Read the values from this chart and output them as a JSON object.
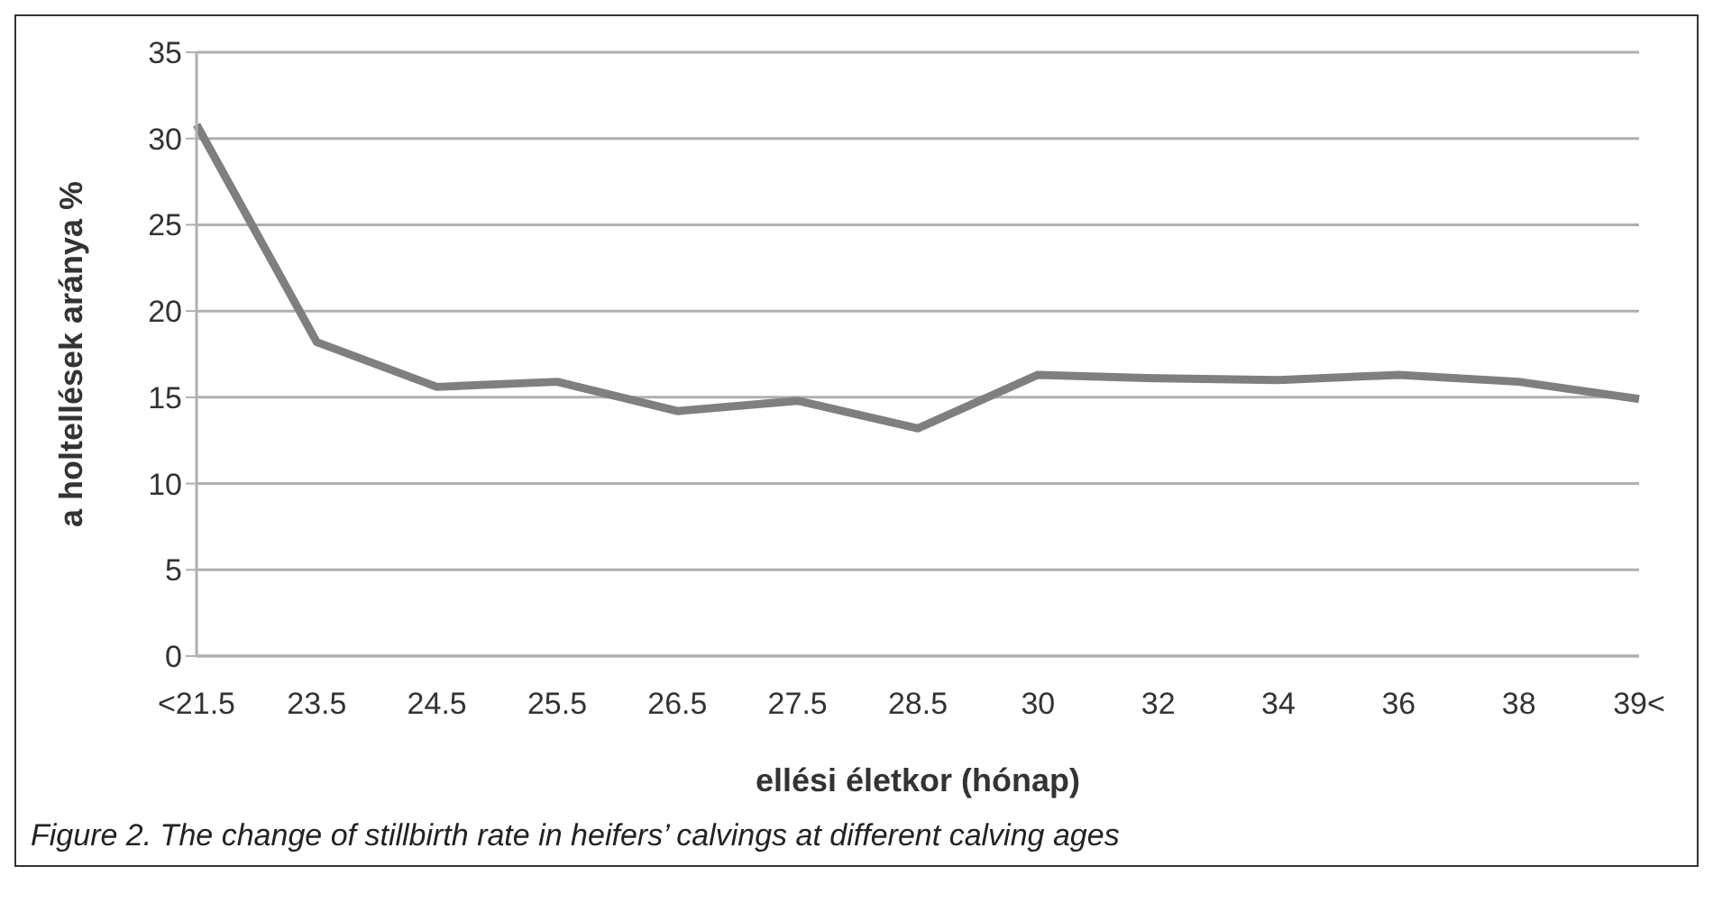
{
  "chart_data": {
    "type": "line",
    "xlabel": "ellési életkor (hónap)",
    "ylabel": "a holtellések aránya %",
    "categories": [
      "<21.5",
      "23.5",
      "24.5",
      "25.5",
      "26.5",
      "27.5",
      "28.5",
      "30",
      "32",
      "34",
      "36",
      "38",
      "39<"
    ],
    "series": [
      {
        "color": "#7f7f7f",
        "values": [
          30.8,
          18.2,
          15.6,
          15.9,
          14.2,
          14.8,
          13.2,
          16.3,
          16.1,
          16.0,
          16.3,
          15.9,
          14.9
        ]
      }
    ],
    "ylim": [
      0,
      35
    ],
    "yticks": [
      0,
      5,
      10,
      15,
      20,
      25,
      30,
      35
    ],
    "grid": "y",
    "legend": false,
    "marker": "none",
    "line_style": "solid",
    "annotations": [
      "Figure 2. The change of stillbirth rate in heifers’ calvings at different calving ages"
    ]
  }
}
